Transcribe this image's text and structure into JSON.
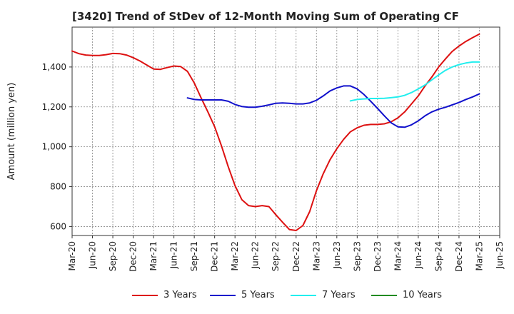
{
  "chart_data": {
    "type": "line",
    "title": "[3420]  Trend of StDev of 12-Month Moving Sum of Operating CF",
    "ylabel": "Amount (million yen)",
    "xlabel": "",
    "ylim": [
      555,
      1600
    ],
    "yticks": [
      600,
      800,
      1000,
      1200,
      1400
    ],
    "ytick_labels": [
      "600",
      "800",
      "1,000",
      "1,200",
      "1,400"
    ],
    "xticks": [
      "Mar-20",
      "Jun-20",
      "Sep-20",
      "Dec-20",
      "Mar-21",
      "Jun-21",
      "Sep-21",
      "Dec-21",
      "Mar-22",
      "Jun-22",
      "Sep-22",
      "Dec-22",
      "Mar-23",
      "Jun-23",
      "Sep-23",
      "Dec-23",
      "Mar-24",
      "Jun-24",
      "Sep-24",
      "Dec-24",
      "Mar-25",
      "Jun-25"
    ],
    "grid": true,
    "legend_position": "bottom",
    "series": [
      {
        "name": "3 Years",
        "color": "#dd1111",
        "start": "Mar-20",
        "values": [
          1480,
          1467,
          1460,
          1458,
          1458,
          1462,
          1468,
          1467,
          1460,
          1447,
          1430,
          1410,
          1390,
          1388,
          1397,
          1405,
          1402,
          1378,
          1320,
          1245,
          1175,
          1100,
          1005,
          900,
          805,
          735,
          705,
          700,
          705,
          700,
          660,
          622,
          585,
          580,
          605,
          675,
          780,
          865,
          935,
          990,
          1037,
          1075,
          1095,
          1108,
          1112,
          1112,
          1115,
          1125,
          1145,
          1175,
          1215,
          1255,
          1305,
          1350,
          1400,
          1440,
          1478,
          1505,
          1528,
          1547,
          1565
        ]
      },
      {
        "name": "5 Years",
        "color": "#1111cc",
        "start": "Aug-21",
        "values": [
          1245,
          1237,
          1235,
          1235,
          1235,
          1235,
          1228,
          1212,
          1202,
          1198,
          1198,
          1203,
          1210,
          1218,
          1220,
          1218,
          1215,
          1215,
          1220,
          1233,
          1255,
          1280,
          1295,
          1305,
          1305,
          1290,
          1262,
          1228,
          1192,
          1155,
          1120,
          1100,
          1098,
          1110,
          1130,
          1155,
          1175,
          1188,
          1198,
          1210,
          1222,
          1237,
          1250,
          1265
        ]
      },
      {
        "name": "7 Years",
        "color": "#22eeee",
        "start": "Aug-23",
        "values": [
          1230,
          1237,
          1240,
          1242,
          1242,
          1243,
          1246,
          1250,
          1258,
          1272,
          1290,
          1310,
          1335,
          1360,
          1383,
          1400,
          1412,
          1420,
          1425,
          1425
        ]
      },
      {
        "name": "10 Years",
        "color": "#228b22",
        "start": "Mar-25",
        "values": []
      }
    ]
  }
}
